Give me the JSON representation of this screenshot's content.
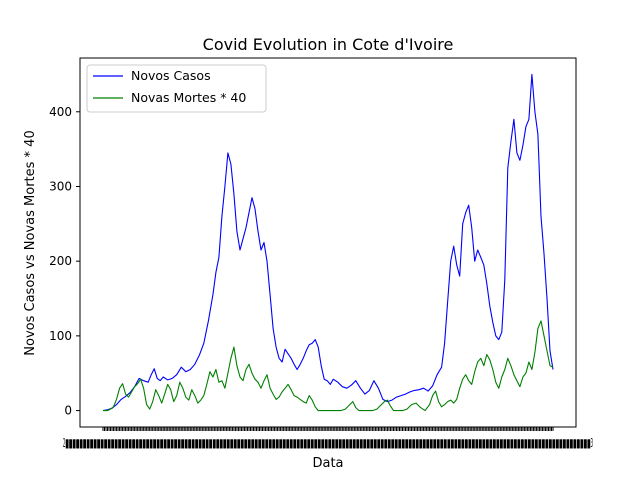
{
  "chart_data": {
    "type": "line",
    "title": "Covid Evolution in Cote d'Ivoire",
    "xlabel": "Data",
    "ylabel": "Novos Casos vs Novas Mortes * 40",
    "ylim": [
      -22,
      472
    ],
    "yticks": [
      0,
      100,
      200,
      300,
      400
    ],
    "x_range": [
      0,
      299
    ],
    "x_tick_text": "2",
    "x_tick_text_right": "3",
    "grid": false,
    "legend_position": "top-left",
    "series": [
      {
        "name": "Novos Casos",
        "color": "#0000ff",
        "points": [
          [
            0,
            0
          ],
          [
            3,
            1
          ],
          [
            6,
            3
          ],
          [
            9,
            8
          ],
          [
            12,
            15
          ],
          [
            15,
            19
          ],
          [
            18,
            24
          ],
          [
            21,
            32
          ],
          [
            24,
            43
          ],
          [
            27,
            40
          ],
          [
            30,
            38
          ],
          [
            32,
            48
          ],
          [
            34,
            56
          ],
          [
            36,
            43
          ],
          [
            38,
            40
          ],
          [
            40,
            45
          ],
          [
            43,
            41
          ],
          [
            46,
            43
          ],
          [
            49,
            48
          ],
          [
            52,
            58
          ],
          [
            55,
            52
          ],
          [
            58,
            55
          ],
          [
            61,
            62
          ],
          [
            64,
            74
          ],
          [
            67,
            90
          ],
          [
            70,
            120
          ],
          [
            73,
            155
          ],
          [
            75,
            185
          ],
          [
            77,
            205
          ],
          [
            79,
            260
          ],
          [
            81,
            300
          ],
          [
            83,
            345
          ],
          [
            85,
            330
          ],
          [
            87,
            290
          ],
          [
            89,
            240
          ],
          [
            91,
            215
          ],
          [
            93,
            230
          ],
          [
            95,
            245
          ],
          [
            97,
            265
          ],
          [
            99,
            285
          ],
          [
            101,
            270
          ],
          [
            103,
            240
          ],
          [
            105,
            215
          ],
          [
            107,
            225
          ],
          [
            109,
            200
          ],
          [
            111,
            155
          ],
          [
            113,
            110
          ],
          [
            115,
            85
          ],
          [
            117,
            70
          ],
          [
            119,
            65
          ],
          [
            121,
            82
          ],
          [
            123,
            76
          ],
          [
            125,
            70
          ],
          [
            127,
            62
          ],
          [
            129,
            55
          ],
          [
            131,
            62
          ],
          [
            133,
            70
          ],
          [
            135,
            80
          ],
          [
            137,
            88
          ],
          [
            139,
            90
          ],
          [
            141,
            95
          ],
          [
            143,
            85
          ],
          [
            145,
            60
          ],
          [
            147,
            42
          ],
          [
            149,
            40
          ],
          [
            151,
            35
          ],
          [
            153,
            42
          ],
          [
            156,
            38
          ],
          [
            159,
            32
          ],
          [
            162,
            30
          ],
          [
            165,
            34
          ],
          [
            168,
            40
          ],
          [
            171,
            30
          ],
          [
            174,
            22
          ],
          [
            177,
            27
          ],
          [
            180,
            40
          ],
          [
            183,
            30
          ],
          [
            186,
            15
          ],
          [
            189,
            12
          ],
          [
            192,
            14
          ],
          [
            195,
            18
          ],
          [
            198,
            20
          ],
          [
            201,
            22
          ],
          [
            204,
            25
          ],
          [
            207,
            27
          ],
          [
            210,
            28
          ],
          [
            213,
            30
          ],
          [
            216,
            26
          ],
          [
            219,
            33
          ],
          [
            222,
            48
          ],
          [
            225,
            58
          ],
          [
            227,
            90
          ],
          [
            229,
            145
          ],
          [
            231,
            200
          ],
          [
            233,
            220
          ],
          [
            235,
            195
          ],
          [
            237,
            180
          ],
          [
            239,
            250
          ],
          [
            241,
            265
          ],
          [
            243,
            275
          ],
          [
            245,
            245
          ],
          [
            247,
            200
          ],
          [
            249,
            215
          ],
          [
            251,
            205
          ],
          [
            253,
            195
          ],
          [
            255,
            170
          ],
          [
            257,
            140
          ],
          [
            259,
            118
          ],
          [
            261,
            100
          ],
          [
            263,
            95
          ],
          [
            265,
            105
          ],
          [
            267,
            175
          ],
          [
            269,
            325
          ],
          [
            271,
            360
          ],
          [
            273,
            390
          ],
          [
            275,
            345
          ],
          [
            277,
            335
          ],
          [
            279,
            355
          ],
          [
            281,
            380
          ],
          [
            283,
            390
          ],
          [
            285,
            450
          ],
          [
            287,
            400
          ],
          [
            289,
            370
          ],
          [
            291,
            260
          ],
          [
            293,
            210
          ],
          [
            295,
            150
          ],
          [
            297,
            80
          ],
          [
            299,
            55
          ]
        ]
      },
      {
        "name": "Novas Mortes * 40",
        "color": "#008000",
        "points": [
          [
            0,
            0
          ],
          [
            3,
            0
          ],
          [
            5,
            2
          ],
          [
            7,
            5
          ],
          [
            9,
            15
          ],
          [
            11,
            30
          ],
          [
            13,
            36
          ],
          [
            15,
            22
          ],
          [
            17,
            18
          ],
          [
            19,
            25
          ],
          [
            21,
            32
          ],
          [
            23,
            36
          ],
          [
            25,
            42
          ],
          [
            27,
            30
          ],
          [
            29,
            8
          ],
          [
            31,
            2
          ],
          [
            33,
            12
          ],
          [
            35,
            28
          ],
          [
            37,
            20
          ],
          [
            39,
            10
          ],
          [
            41,
            22
          ],
          [
            43,
            35
          ],
          [
            45,
            28
          ],
          [
            47,
            12
          ],
          [
            49,
            20
          ],
          [
            51,
            38
          ],
          [
            53,
            30
          ],
          [
            55,
            18
          ],
          [
            57,
            14
          ],
          [
            59,
            28
          ],
          [
            61,
            20
          ],
          [
            63,
            10
          ],
          [
            65,
            14
          ],
          [
            67,
            20
          ],
          [
            69,
            35
          ],
          [
            71,
            52
          ],
          [
            73,
            45
          ],
          [
            75,
            55
          ],
          [
            77,
            38
          ],
          [
            79,
            40
          ],
          [
            81,
            30
          ],
          [
            83,
            50
          ],
          [
            85,
            70
          ],
          [
            87,
            85
          ],
          [
            89,
            60
          ],
          [
            91,
            45
          ],
          [
            93,
            40
          ],
          [
            95,
            55
          ],
          [
            97,
            62
          ],
          [
            99,
            50
          ],
          [
            101,
            42
          ],
          [
            103,
            38
          ],
          [
            105,
            30
          ],
          [
            107,
            40
          ],
          [
            109,
            48
          ],
          [
            111,
            30
          ],
          [
            113,
            22
          ],
          [
            115,
            15
          ],
          [
            117,
            18
          ],
          [
            119,
            25
          ],
          [
            121,
            30
          ],
          [
            123,
            35
          ],
          [
            125,
            28
          ],
          [
            127,
            20
          ],
          [
            129,
            18
          ],
          [
            131,
            15
          ],
          [
            133,
            12
          ],
          [
            135,
            10
          ],
          [
            137,
            20
          ],
          [
            139,
            14
          ],
          [
            141,
            5
          ],
          [
            143,
            0
          ],
          [
            146,
            0
          ],
          [
            149,
            0
          ],
          [
            152,
            0
          ],
          [
            155,
            0
          ],
          [
            158,
            0
          ],
          [
            161,
            2
          ],
          [
            164,
            8
          ],
          [
            166,
            12
          ],
          [
            168,
            4
          ],
          [
            170,
            0
          ],
          [
            173,
            0
          ],
          [
            176,
            0
          ],
          [
            179,
            0
          ],
          [
            182,
            2
          ],
          [
            185,
            8
          ],
          [
            187,
            12
          ],
          [
            189,
            14
          ],
          [
            191,
            6
          ],
          [
            193,
            0
          ],
          [
            196,
            0
          ],
          [
            199,
            0
          ],
          [
            202,
            2
          ],
          [
            205,
            8
          ],
          [
            208,
            10
          ],
          [
            211,
            4
          ],
          [
            214,
            0
          ],
          [
            217,
            8
          ],
          [
            219,
            20
          ],
          [
            221,
            26
          ],
          [
            223,
            12
          ],
          [
            225,
            5
          ],
          [
            227,
            8
          ],
          [
            229,
            12
          ],
          [
            231,
            14
          ],
          [
            233,
            10
          ],
          [
            235,
            15
          ],
          [
            237,
            30
          ],
          [
            239,
            42
          ],
          [
            241,
            48
          ],
          [
            243,
            40
          ],
          [
            245,
            35
          ],
          [
            247,
            52
          ],
          [
            249,
            65
          ],
          [
            251,
            70
          ],
          [
            253,
            60
          ],
          [
            255,
            75
          ],
          [
            257,
            68
          ],
          [
            259,
            55
          ],
          [
            261,
            38
          ],
          [
            263,
            30
          ],
          [
            265,
            45
          ],
          [
            267,
            55
          ],
          [
            269,
            70
          ],
          [
            271,
            60
          ],
          [
            273,
            48
          ],
          [
            275,
            40
          ],
          [
            277,
            32
          ],
          [
            279,
            45
          ],
          [
            281,
            50
          ],
          [
            283,
            65
          ],
          [
            285,
            55
          ],
          [
            287,
            78
          ],
          [
            289,
            110
          ],
          [
            291,
            120
          ],
          [
            293,
            100
          ],
          [
            295,
            80
          ],
          [
            297,
            60
          ],
          [
            299,
            58
          ]
        ]
      }
    ]
  }
}
